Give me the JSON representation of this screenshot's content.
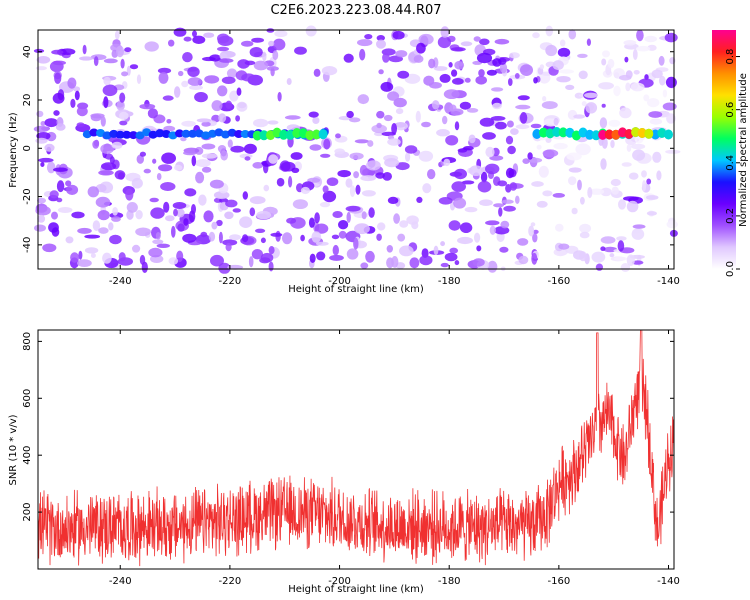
{
  "figure": {
    "title": "C2E6.2023.223.08.44.R07"
  },
  "chart_data": [
    {
      "type": "heatmap",
      "title": "",
      "xlabel": "Height of straight line (km)",
      "ylabel": "Frequency (Hz)",
      "xlim": [
        -255,
        -139
      ],
      "ylim": [
        -50,
        49
      ],
      "xticks": [
        -240,
        -220,
        -200,
        -180,
        -160,
        -140
      ],
      "yticks": [
        -40,
        -20,
        0,
        20,
        40
      ],
      "colorbar": {
        "label": "Normalized spectral amplitude",
        "range": [
          0.0,
          0.9
        ],
        "ticks": [
          0.0,
          0.2,
          0.4,
          0.6,
          0.8
        ],
        "colormap": [
          "#ffffff",
          "#e0c8ff",
          "#a050ff",
          "#6a00ff",
          "#1a10ff",
          "#00c8ff",
          "#00ff60",
          "#9aff00",
          "#ffe000",
          "#ff9000",
          "#ff2020",
          "#ff0090"
        ]
      },
      "ridge": {
        "frequency_hz": 6,
        "segments": [
          {
            "x_start": -246,
            "x_end": -202,
            "amplitude": 0.35
          },
          {
            "x_start": -215,
            "x_end": -203,
            "amplitude": 0.5
          },
          {
            "x_start": -164,
            "x_end": -139,
            "amplitude": 0.45
          },
          {
            "x_start": -152,
            "x_end": -147,
            "amplitude": 0.9
          },
          {
            "x_start": -146,
            "x_end": -143,
            "amplitude": 0.7
          }
        ]
      },
      "background_noise": {
        "amplitude_range": [
          0.05,
          0.25
        ],
        "quiet_band_x": [
          -164,
          -139
        ]
      }
    },
    {
      "type": "line",
      "title": "",
      "xlabel": "Height of straight line (km)",
      "ylabel": "SNR (10 * v/v)",
      "xlim": [
        -255,
        -139
      ],
      "ylim": [
        0,
        840
      ],
      "xticks": [
        -240,
        -220,
        -200,
        -180,
        -160,
        -140
      ],
      "yticks": [
        200,
        400,
        600,
        800
      ],
      "series": [
        {
          "color": "#f03030",
          "x": [
            -255,
            -250,
            -245,
            -240,
            -235,
            -230,
            -225,
            -220,
            -215,
            -210,
            -205,
            -200,
            -195,
            -190,
            -185,
            -180,
            -175,
            -170,
            -165,
            -162,
            -160,
            -157,
            -155,
            -153,
            -151,
            -150,
            -148,
            -146,
            -145,
            -144,
            -143,
            -142,
            -141,
            -140,
            -139
          ],
          "y": [
            150,
            140,
            150,
            145,
            150,
            145,
            160,
            170,
            190,
            200,
            195,
            180,
            160,
            150,
            150,
            145,
            145,
            150,
            150,
            200,
            300,
            350,
            420,
            500,
            540,
            480,
            380,
            600,
            650,
            560,
            350,
            120,
            250,
            400,
            450
          ],
          "noise_amplitude": 120,
          "peaks": [
            {
              "x": -153,
              "y": 830
            },
            {
              "x": -145,
              "y": 840
            }
          ]
        }
      ]
    }
  ]
}
